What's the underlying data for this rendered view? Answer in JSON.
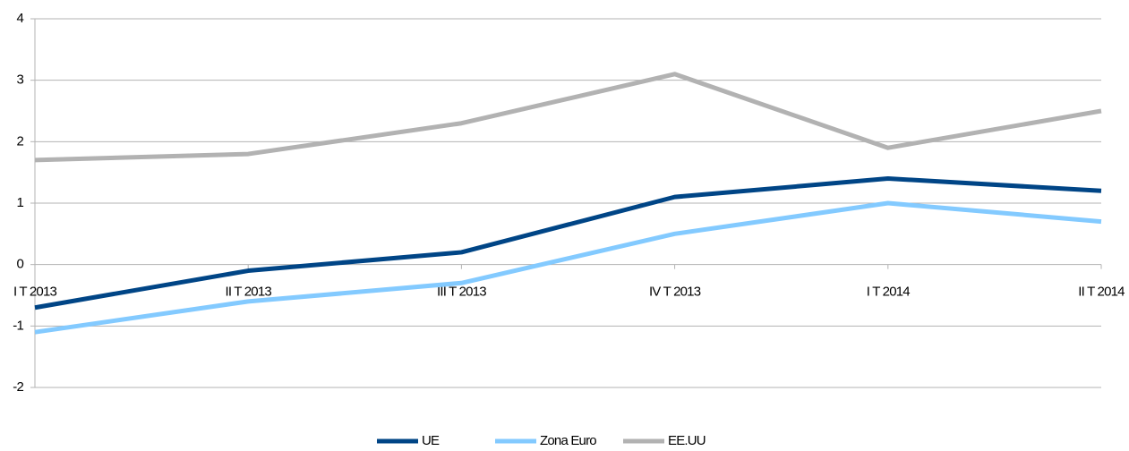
{
  "chart_data": {
    "type": "line",
    "categories": [
      "I T 2013",
      "II T 2013",
      "III T 2013",
      "IV T 2013",
      "I T 2014",
      "II T 2014"
    ],
    "series": [
      {
        "name": "UE",
        "color": "#004586",
        "values": [
          -0.7,
          -0.1,
          0.2,
          1.1,
          1.4,
          1.2
        ]
      },
      {
        "name": "Zona Euro",
        "color": "#83caff",
        "values": [
          -1.1,
          -0.6,
          -0.3,
          0.5,
          1.0,
          0.7
        ]
      },
      {
        "name": "EE.UU",
        "color": "#b2b2b2",
        "values": [
          1.7,
          1.8,
          2.3,
          3.1,
          1.9,
          2.5
        ]
      }
    ],
    "ylim": [
      -2,
      4
    ],
    "yticks": [
      -2,
      -1,
      0,
      1,
      2,
      3,
      4
    ],
    "grid": true,
    "legend": "bottom"
  }
}
